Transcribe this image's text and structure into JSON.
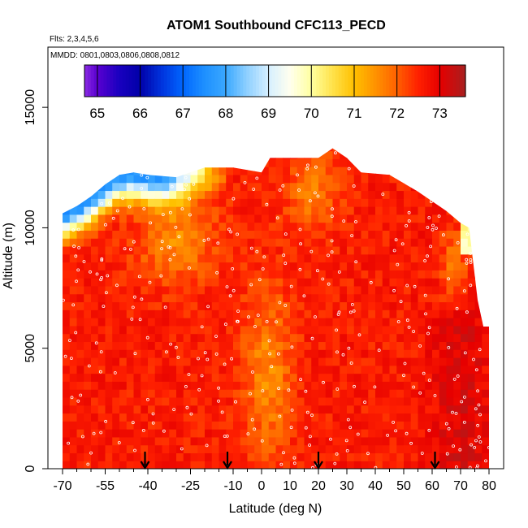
{
  "chart_data": {
    "type": "heatmap",
    "title": "ATOM1 Southbound CFC113_PECD",
    "flights_note": "Flts: 2,3,4,5,6",
    "dates_note": "MMDD: 0801,0803,0806,0808,0812",
    "xlabel": "Latitude (deg N)",
    "ylabel": "Altitude (m)",
    "xlim": [
      -70,
      80
    ],
    "ylim": [
      0,
      17500
    ],
    "x_tick_values": [
      -70,
      -55,
      -40,
      -25,
      -10,
      0,
      10,
      20,
      30,
      40,
      50,
      60,
      70,
      80
    ],
    "x_tick_labels": [
      "-70",
      "-55",
      "-40",
      "-25",
      "-10",
      "0",
      "10",
      "20",
      "30",
      "40",
      "50",
      "60",
      "70",
      "80"
    ],
    "x_minor_ticks": [
      -65,
      -60,
      -50,
      -45,
      -35,
      -30,
      -20,
      -15,
      -5,
      5,
      15,
      25,
      35,
      45,
      55,
      65,
      75
    ],
    "y_tick_values": [
      0,
      5000,
      10000,
      15000
    ],
    "y_tick_labels": [
      "0",
      "5000",
      "10000",
      "15000"
    ],
    "colorbar": {
      "range": [
        64.7,
        73.6
      ],
      "tick_values": [
        65,
        66,
        67,
        68,
        69,
        70,
        71,
        72,
        73
      ],
      "tick_labels": [
        "65",
        "66",
        "67",
        "68",
        "69",
        "70",
        "71",
        "72",
        "73"
      ],
      "stops": [
        [
          64.7,
          "#8a2be2"
        ],
        [
          65.0,
          "#5a00d0"
        ],
        [
          65.5,
          "#1a00c0"
        ],
        [
          66.0,
          "#0000a8"
        ],
        [
          66.5,
          "#0033dd"
        ],
        [
          67.0,
          "#0066ff"
        ],
        [
          67.5,
          "#1e90ff"
        ],
        [
          68.0,
          "#3aa8ff"
        ],
        [
          68.5,
          "#8fd0ff"
        ],
        [
          69.0,
          "#d6efff"
        ],
        [
          69.5,
          "#ffffee"
        ],
        [
          70.0,
          "#ffffa0"
        ],
        [
          70.5,
          "#ffe24a"
        ],
        [
          71.0,
          "#ffc000"
        ],
        [
          71.5,
          "#ff9200"
        ],
        [
          72.0,
          "#ff6000"
        ],
        [
          72.5,
          "#ff2000"
        ],
        [
          73.0,
          "#e60000"
        ],
        [
          73.6,
          "#a82020"
        ]
      ]
    },
    "altitude_ceiling": [
      [
        -70,
        10600
      ],
      [
        -65,
        10900
      ],
      [
        -60,
        11300
      ],
      [
        -55,
        11800
      ],
      [
        -50,
        12200
      ],
      [
        -45,
        12300
      ],
      [
        -40,
        12200
      ],
      [
        -30,
        12100
      ],
      [
        -20,
        12500
      ],
      [
        -10,
        12500
      ],
      [
        0,
        12300
      ],
      [
        3,
        12900
      ],
      [
        10,
        12900
      ],
      [
        20,
        12900
      ],
      [
        25,
        13300
      ],
      [
        30,
        12900
      ],
      [
        35,
        12300
      ],
      [
        45,
        12200
      ],
      [
        55,
        11500
      ],
      [
        65,
        10700
      ],
      [
        70,
        10200
      ],
      [
        73,
        10000
      ],
      [
        76,
        7000
      ],
      [
        78,
        5900
      ],
      [
        80,
        5900
      ]
    ],
    "field_description": "CFC113 mixing ratio cross-section (ppt); mostly 71.5-73.5, low values (65-68) near the southern tropopause",
    "arrow_latitudes": [
      -41,
      -12,
      20,
      61
    ]
  }
}
